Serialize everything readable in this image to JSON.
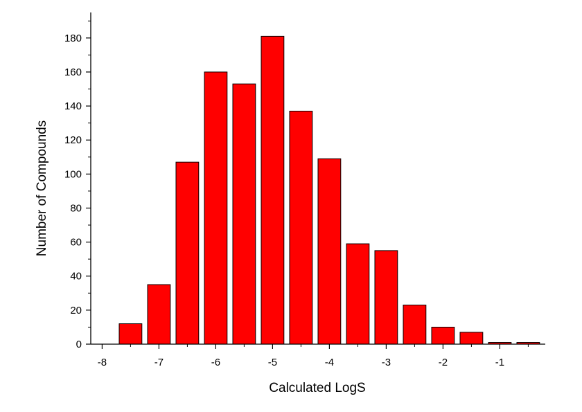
{
  "chart_data": {
    "type": "bar",
    "title": "",
    "xlabel": "Calculated LogS",
    "ylabel": "Number of Compounds",
    "bar_color": "#ff0000",
    "bar_edge_color": "#000000",
    "bin_width": 0.5,
    "x": [
      -7.5,
      -7.0,
      -6.5,
      -6.0,
      -5.5,
      -5.0,
      -4.5,
      -4.0,
      -3.5,
      -3.0,
      -2.5,
      -2.0,
      -1.5,
      -1.0,
      -0.5
    ],
    "values": [
      12,
      35,
      107,
      160,
      153,
      181,
      137,
      109,
      59,
      55,
      23,
      10,
      7,
      1,
      1
    ],
    "xlim": [
      -8.2,
      -0.2
    ],
    "ylim": [
      0,
      195
    ],
    "x_ticks": [
      -8,
      -7,
      -6,
      -5,
      -4,
      -3,
      -2,
      -1
    ],
    "x_tick_labels": [
      "-8",
      "-7",
      "-6",
      "-5",
      "-4",
      "-3",
      "-2",
      "-1"
    ],
    "y_ticks": [
      0,
      20,
      40,
      60,
      80,
      100,
      120,
      140,
      160,
      180
    ],
    "y_tick_labels": [
      "0",
      "20",
      "40",
      "60",
      "80",
      "100",
      "120",
      "140",
      "160",
      "180"
    ],
    "grid": false,
    "legend": "none"
  }
}
